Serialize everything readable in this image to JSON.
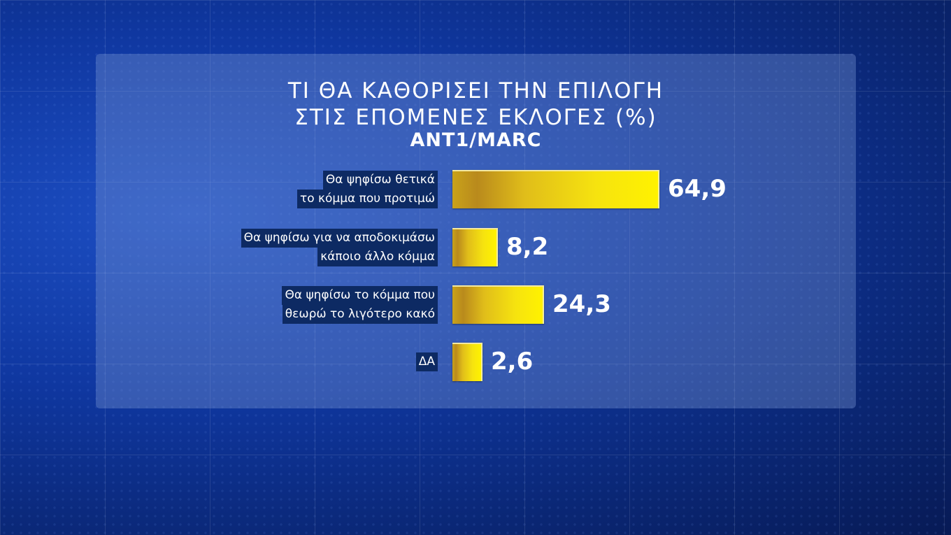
{
  "chart_data": {
    "type": "bar",
    "orientation": "horizontal",
    "title": "ΤΙ ΘΑ ΚΑΘΟΡΙΣΕΙ ΤΗΝ ΕΠΙΛΟΓΗ",
    "title_line2": "ΣΤΙΣ ΕΠΟΜΕΝΕΣ ΕΚΛΟΓΕΣ (%)",
    "subtitle": "ANT1/MARC",
    "categories": [
      [
        "Θα ψηφίσω θετικά",
        "το κόμμα που προτιμώ"
      ],
      [
        "Θα ψηφίσω για να αποδοκιμάσω",
        "κάποιο άλλο κόμμα"
      ],
      [
        "Θα ψηφίσω το κόμμα που",
        "θεωρώ το λιγότερο κακό"
      ],
      [
        "ΔΑ"
      ]
    ],
    "values": [
      64.9,
      8.2,
      24.3,
      2.6
    ],
    "value_labels": [
      "64,9",
      "8,2",
      "24,3",
      "2,6"
    ],
    "bar_color": "#f6e30f",
    "grid": false
  }
}
